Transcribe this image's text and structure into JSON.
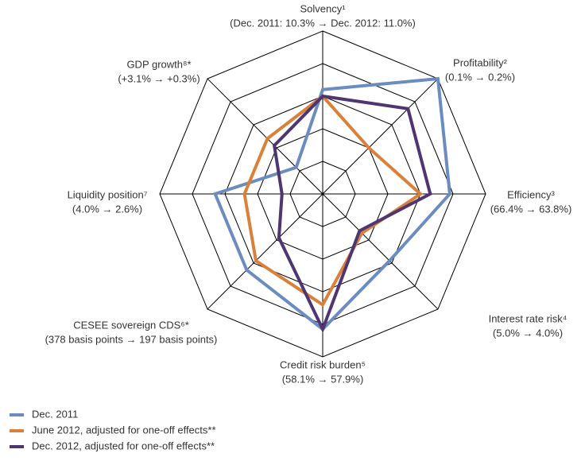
{
  "chart_data": {
    "type": "radar",
    "categories": [
      "Solvency¹",
      "Profitability²",
      "Efficiency³",
      "Interest rate risk⁴",
      "Credit risk burden⁵",
      "CESEE sovereign CDS⁶*",
      "Liquidity position⁷",
      "GDP growth⁸*"
    ],
    "category_notes": [
      "(Dec. 2011: 10.3% → Dec. 2012: 11.0%)",
      "(0.1% → 0.2%)",
      "(66.4% → 63.8%)",
      "(5.0% → 4.0%)",
      "(58.1% → 57.9%)",
      "(378 basis points → 197 basis points)",
      "(4.0% → 2.6%)",
      "(+3.1% → +0.3%)"
    ],
    "rlim": [
      0,
      5
    ],
    "rticks": [
      1,
      2,
      3,
      4,
      5
    ],
    "series": [
      {
        "name": "Dec. 2011",
        "color": "#6b8cbe",
        "values": [
          3.2,
          5.0,
          3.9,
          2.9,
          4.15,
          3.3,
          3.3,
          1.15
        ]
      },
      {
        "name": "June 2012, adjusted for one-off effects**",
        "color": "#d9813a",
        "values": [
          3.0,
          2.0,
          3.0,
          1.7,
          3.4,
          2.9,
          2.4,
          2.4
        ]
      },
      {
        "name": "Dec. 2012, adjusted for one-off effects**",
        "color": "#4f3572",
        "values": [
          3.0,
          3.7,
          3.3,
          1.6,
          4.15,
          1.9,
          1.25,
          2.1
        ]
      }
    ]
  }
}
